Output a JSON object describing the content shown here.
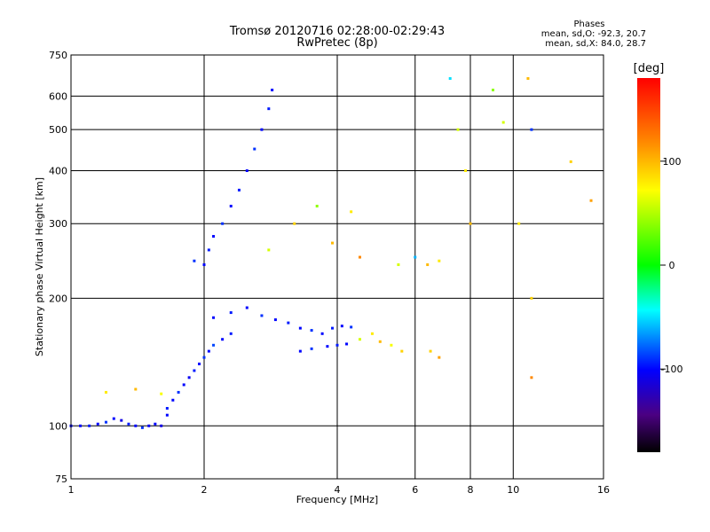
{
  "header": {
    "title_line1": "Tromsø 20120716 02:28:00-02:29:43",
    "title_line2": "RwPretec (8p)"
  },
  "phases_note": {
    "heading": "Phases",
    "line_o": "mean, sd,O: -92.3, 20.7",
    "line_x": "mean, sd,X: 84.0, 28.7"
  },
  "colorbar": {
    "unit_label": "[deg]",
    "tick_labels": [
      "100",
      "0",
      "-100"
    ],
    "tick_values": [
      100,
      0,
      -100
    ],
    "range": [
      -180,
      180
    ]
  },
  "chart_data": {
    "type": "scatter",
    "title": "Tromsø 20120716 02:28:00-02:29:43",
    "subtitle": "RwPretec (8p)",
    "xlabel": "Frequency [MHz]",
    "ylabel": "Stationary phase Virtual Height [km]",
    "x_scale": "log",
    "y_scale": "log",
    "xlim": [
      1,
      16
    ],
    "ylim": [
      75,
      750
    ],
    "x_ticks": [
      1,
      2,
      4,
      6,
      8,
      10,
      16
    ],
    "x_tick_labels": [
      "1",
      "2",
      "4",
      "6",
      "8",
      "10",
      "16"
    ],
    "y_ticks": [
      75,
      100,
      200,
      300,
      400,
      500,
      600,
      750
    ],
    "y_tick_labels": [
      "75",
      "100",
      "200",
      "300",
      "400",
      "500",
      "600",
      "750"
    ],
    "grid": true,
    "color_encoding": "phase (deg)",
    "series": [
      {
        "values": [
          [
            1.0,
            100,
            -100
          ],
          [
            1.05,
            100,
            -100
          ],
          [
            1.1,
            100,
            -95
          ],
          [
            1.15,
            101,
            -100
          ],
          [
            1.2,
            102,
            -90
          ],
          [
            1.25,
            104,
            -100
          ],
          [
            1.3,
            103,
            -110
          ],
          [
            1.35,
            101,
            -95
          ],
          [
            1.4,
            100,
            -100
          ],
          [
            1.45,
            99,
            -90
          ],
          [
            1.5,
            100,
            -105
          ],
          [
            1.55,
            101,
            -100
          ],
          [
            1.6,
            100,
            -110
          ],
          [
            1.65,
            106,
            -100
          ]
        ]
      },
      {
        "values": [
          [
            1.65,
            110,
            -95
          ],
          [
            1.7,
            115,
            -100
          ],
          [
            1.75,
            120,
            -90
          ],
          [
            1.8,
            125,
            -100
          ],
          [
            1.85,
            130,
            -105
          ],
          [
            1.9,
            135,
            -95
          ],
          [
            1.95,
            140,
            -100
          ],
          [
            2.0,
            145,
            -90
          ],
          [
            2.05,
            150,
            -100
          ],
          [
            2.1,
            155,
            -85
          ],
          [
            2.2,
            160,
            -100
          ],
          [
            2.3,
            165,
            -95
          ]
        ]
      },
      {
        "values": [
          [
            1.9,
            245,
            -90
          ],
          [
            2.0,
            240,
            -100
          ],
          [
            2.05,
            260,
            -95
          ],
          [
            2.1,
            280,
            -100
          ],
          [
            2.2,
            300,
            -90
          ],
          [
            2.3,
            330,
            -100
          ],
          [
            2.4,
            360,
            -95
          ],
          [
            2.5,
            400,
            -100
          ],
          [
            2.6,
            450,
            -90
          ],
          [
            2.7,
            500,
            -100
          ],
          [
            2.8,
            560,
            -95
          ],
          [
            2.85,
            620,
            -100
          ]
        ]
      },
      {
        "values": [
          [
            2.1,
            180,
            -100
          ],
          [
            2.3,
            185,
            -95
          ],
          [
            2.5,
            190,
            -100
          ],
          [
            2.7,
            182,
            -90
          ],
          [
            2.9,
            178,
            -100
          ],
          [
            3.1,
            175,
            -95
          ],
          [
            3.3,
            170,
            -100
          ],
          [
            3.5,
            168,
            -90
          ],
          [
            3.7,
            165,
            -100
          ],
          [
            3.9,
            170,
            -95
          ],
          [
            4.1,
            172,
            -100
          ],
          [
            4.3,
            171,
            -90
          ]
        ]
      },
      {
        "values": [
          [
            3.3,
            150,
            -100
          ],
          [
            3.5,
            152,
            -90
          ],
          [
            3.8,
            154,
            -100
          ],
          [
            4.0,
            155,
            -95
          ],
          [
            4.2,
            156,
            -100
          ],
          [
            4.5,
            160,
            60
          ],
          [
            4.8,
            165,
            80
          ],
          [
            5.0,
            158,
            100
          ],
          [
            5.3,
            155,
            70
          ],
          [
            5.6,
            150,
            90
          ]
        ]
      },
      {
        "values": [
          [
            1.2,
            120,
            80
          ],
          [
            1.4,
            122,
            100
          ],
          [
            1.6,
            119,
            70
          ],
          [
            2.8,
            260,
            60
          ],
          [
            3.2,
            300,
            90
          ],
          [
            3.6,
            330,
            40
          ],
          [
            3.9,
            270,
            100
          ],
          [
            4.3,
            320,
            80
          ],
          [
            4.5,
            250,
            120
          ],
          [
            5.5,
            240,
            60
          ]
        ]
      },
      {
        "values": [
          [
            6.0,
            250,
            -60
          ],
          [
            6.4,
            240,
            100
          ],
          [
            6.8,
            245,
            80
          ],
          [
            6.5,
            150,
            90
          ],
          [
            6.8,
            145,
            110
          ],
          [
            7.2,
            660,
            -50
          ],
          [
            7.5,
            500,
            60
          ],
          [
            7.8,
            400,
            80
          ],
          [
            8.0,
            300,
            100
          ],
          [
            9.0,
            620,
            40
          ],
          [
            9.5,
            520,
            60
          ],
          [
            10.3,
            300,
            80
          ],
          [
            10.8,
            660,
            100
          ],
          [
            11.0,
            500,
            -90
          ],
          [
            11.0,
            200,
            90
          ],
          [
            11.0,
            130,
            120
          ],
          [
            13.5,
            420,
            90
          ],
          [
            15.0,
            340,
            110
          ]
        ]
      }
    ]
  }
}
